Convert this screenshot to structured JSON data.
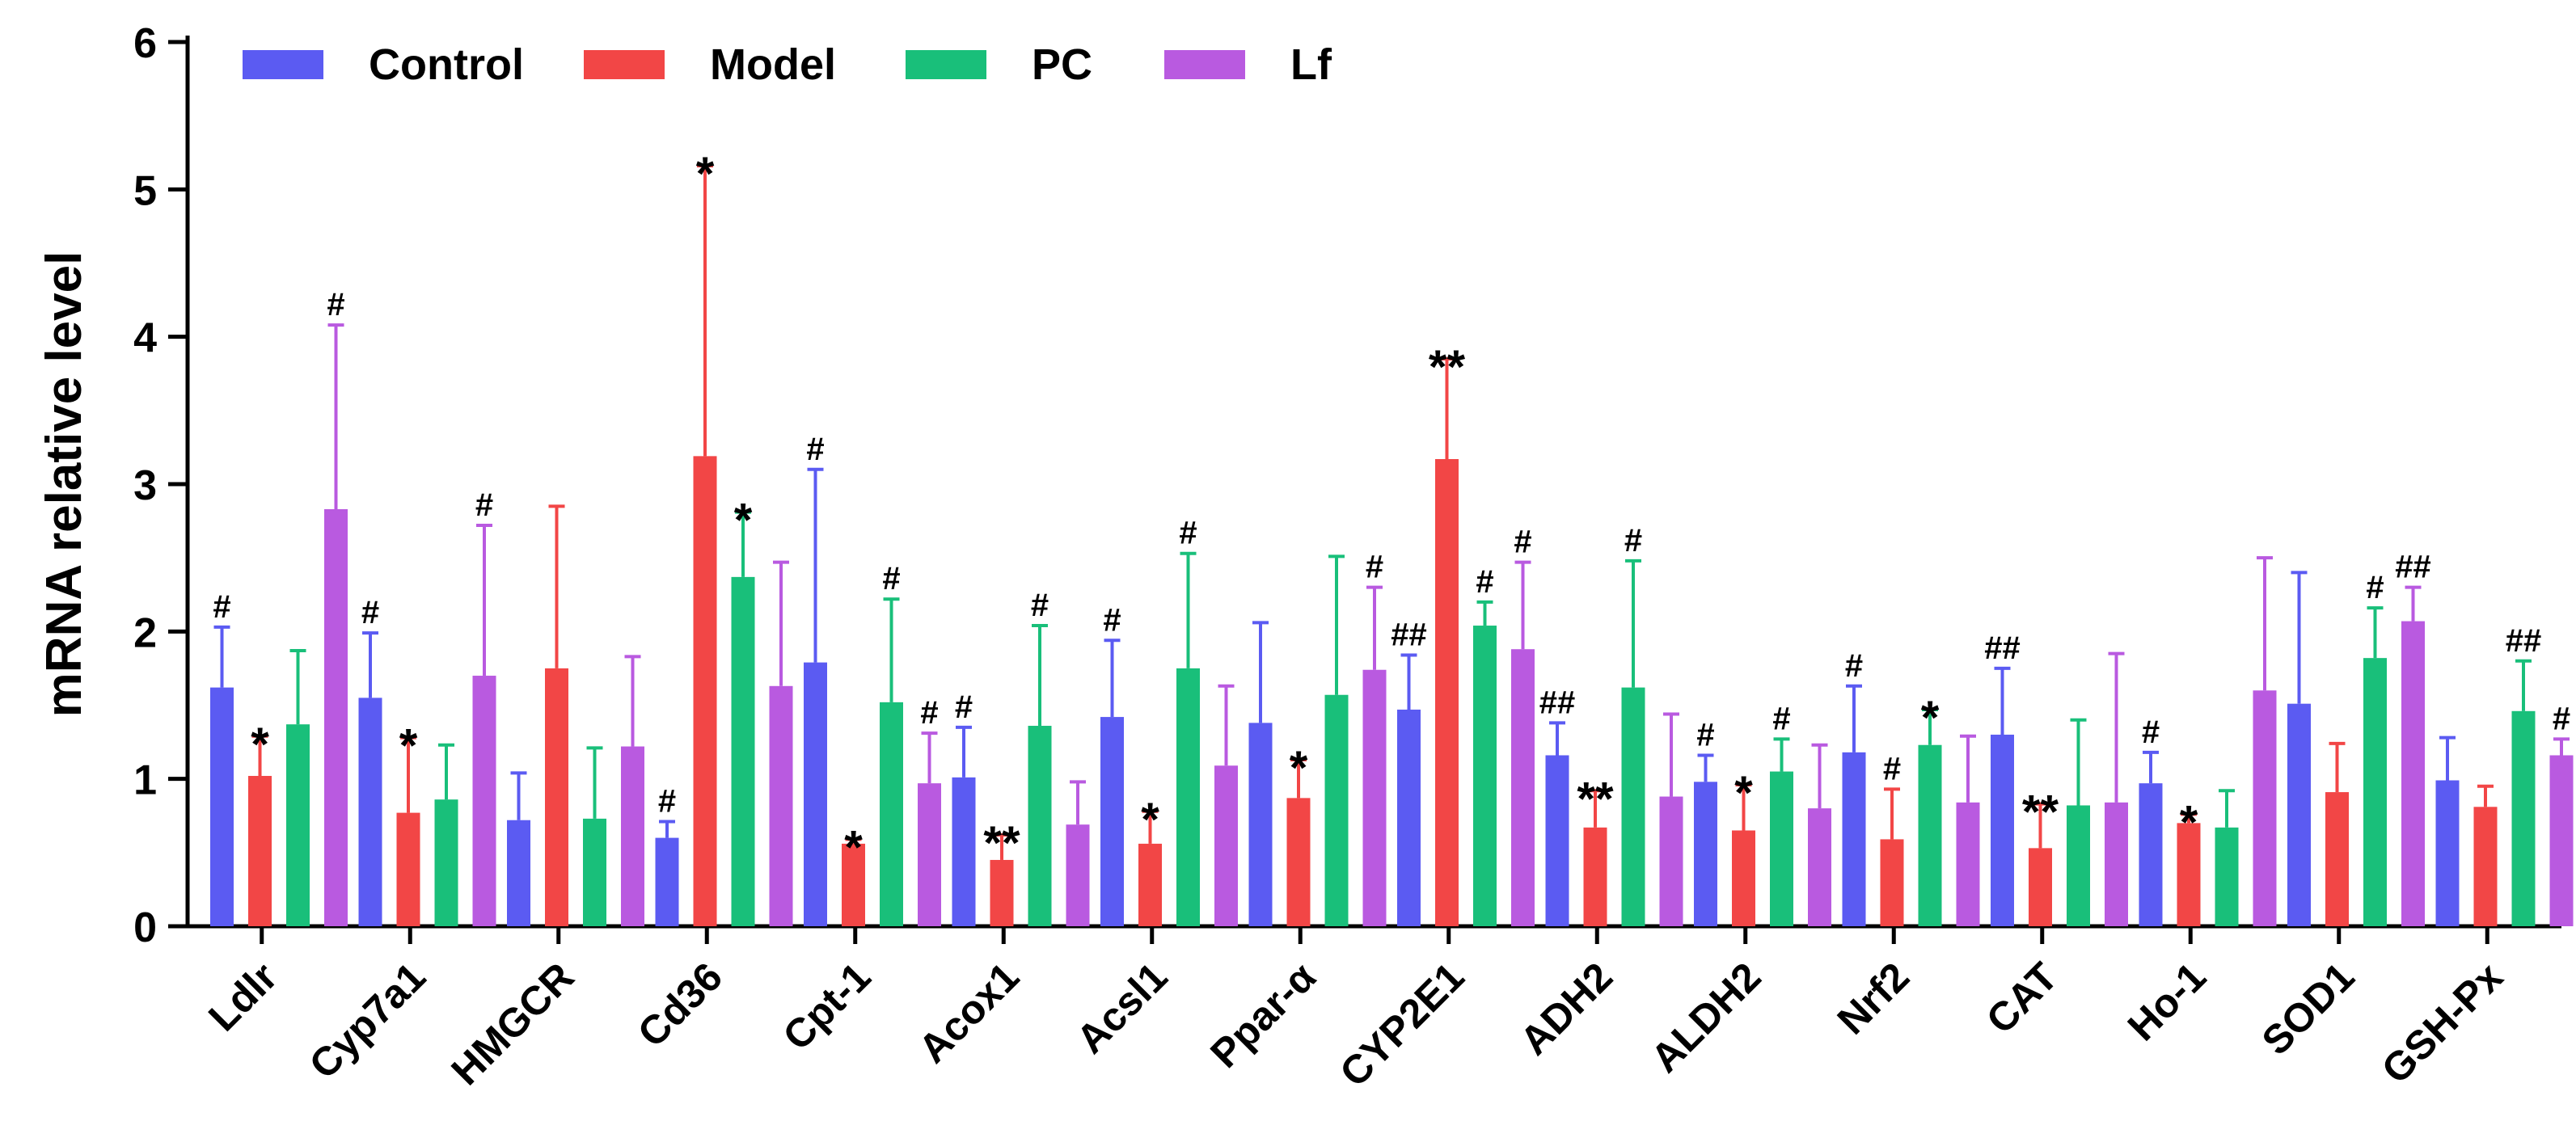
{
  "chart_data": {
    "type": "bar",
    "title": "",
    "xlabel": "",
    "ylabel": "mRNA relative level",
    "ylim": [
      0,
      6
    ],
    "yticks": [
      "0",
      "1",
      "2",
      "3",
      "4",
      "5",
      "6"
    ],
    "categories": [
      "Ldlr",
      "Cyp7a1",
      "HMGCR",
      "Cd36",
      "Cpt-1",
      "Acox1",
      "Acsl1",
      "Ppar-α",
      "CYP2E1",
      "ADH2",
      "ALDH2",
      "Nrf2",
      "CAT",
      "Ho-1",
      "SOD1",
      "GSH-Px"
    ],
    "legend_position": "top-left",
    "series": [
      {
        "name": "Control",
        "color": "#5b5bf2",
        "values": [
          1.62,
          1.55,
          0.72,
          0.6,
          1.79,
          1.01,
          1.42,
          1.38,
          1.47,
          1.16,
          0.98,
          1.18,
          1.3,
          0.97,
          1.51,
          0.99
        ],
        "errors": [
          0.41,
          0.44,
          0.32,
          0.11,
          1.31,
          0.34,
          0.52,
          0.68,
          0.37,
          0.22,
          0.18,
          0.45,
          0.45,
          0.21,
          0.89,
          0.29
        ],
        "annotations": [
          "#",
          "#",
          "",
          "#",
          "#",
          "#",
          "#",
          "",
          "##",
          "##",
          "#",
          "#",
          "##",
          "#",
          "",
          ""
        ]
      },
      {
        "name": "Model",
        "color": "#f24646",
        "values": [
          1.02,
          0.77,
          1.75,
          3.19,
          0.56,
          0.45,
          0.56,
          0.87,
          3.17,
          0.67,
          0.65,
          0.59,
          0.53,
          0.7,
          0.91,
          0.81
        ],
        "errors": [
          0.27,
          0.51,
          1.1,
          1.97,
          0.03,
          0.17,
          0.22,
          0.26,
          0.68,
          0.25,
          0.31,
          0.34,
          0.3,
          0.06,
          0.33,
          0.14
        ],
        "annotations": [
          "*",
          "*",
          "",
          "*",
          "*",
          "**",
          "*",
          "*",
          "**",
          "**",
          "*",
          "#",
          "**",
          "*",
          "",
          ""
        ]
      },
      {
        "name": "PC",
        "color": "#19bf7a",
        "values": [
          1.37,
          0.86,
          0.73,
          2.37,
          1.52,
          1.36,
          1.75,
          1.57,
          2.04,
          1.62,
          1.05,
          1.23,
          0.82,
          0.67,
          1.82,
          1.46
        ],
        "errors": [
          0.5,
          0.37,
          0.48,
          0.44,
          0.7,
          0.68,
          0.78,
          0.94,
          0.16,
          0.86,
          0.22,
          0.24,
          0.58,
          0.25,
          0.34,
          0.34
        ],
        "annotations": [
          "",
          "",
          "",
          "*",
          "#",
          "#",
          "#",
          "",
          "#",
          "#",
          "#",
          "*",
          "",
          "",
          "#",
          "##"
        ]
      },
      {
        "name": "Lf",
        "color": "#b95ae0",
        "values": [
          2.83,
          1.7,
          1.22,
          1.63,
          0.97,
          0.69,
          1.09,
          1.74,
          1.88,
          0.88,
          0.8,
          0.84,
          0.84,
          1.6,
          2.07,
          1.16
        ],
        "errors": [
          1.25,
          1.02,
          0.61,
          0.84,
          0.34,
          0.29,
          0.54,
          0.56,
          0.59,
          0.56,
          0.43,
          0.45,
          1.01,
          0.9,
          0.23,
          0.11
        ],
        "annotations": [
          "#",
          "#",
          "",
          "",
          "#",
          "",
          "",
          "#",
          "#",
          "",
          "",
          "",
          "",
          "",
          "##",
          "#"
        ]
      }
    ]
  }
}
